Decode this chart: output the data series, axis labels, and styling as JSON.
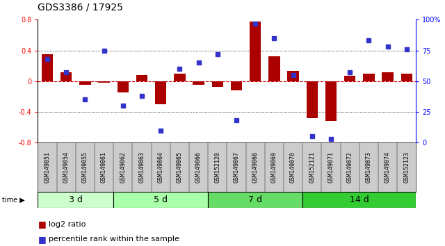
{
  "title": "GDS3386 / 17925",
  "samples": [
    "GSM149851",
    "GSM149854",
    "GSM149855",
    "GSM149861",
    "GSM149862",
    "GSM149863",
    "GSM149864",
    "GSM149865",
    "GSM149866",
    "GSM152120",
    "GSM149867",
    "GSM149868",
    "GSM149869",
    "GSM149870",
    "GSM152121",
    "GSM149871",
    "GSM149872",
    "GSM149873",
    "GSM149874",
    "GSM152123"
  ],
  "log2_ratio": [
    0.35,
    0.12,
    -0.05,
    -0.02,
    -0.15,
    0.08,
    -0.3,
    0.1,
    -0.05,
    -0.07,
    -0.12,
    0.78,
    0.32,
    0.13,
    -0.48,
    -0.52,
    0.07,
    0.1,
    0.12,
    0.1
  ],
  "percentile": [
    68,
    57,
    35,
    75,
    30,
    38,
    10,
    60,
    65,
    72,
    18,
    97,
    85,
    55,
    5,
    3,
    57,
    83,
    78,
    76
  ],
  "groups": [
    {
      "label": "3 d",
      "start": 0,
      "end": 4,
      "color": "#ccffcc"
    },
    {
      "label": "5 d",
      "start": 4,
      "end": 9,
      "color": "#aaffaa"
    },
    {
      "label": "7 d",
      "start": 9,
      "end": 14,
      "color": "#66dd66"
    },
    {
      "label": "14 d",
      "start": 14,
      "end": 20,
      "color": "#33cc33"
    }
  ],
  "ylim_left": [
    -0.8,
    0.8
  ],
  "ylim_right": [
    0,
    100
  ],
  "yticks_left": [
    -0.8,
    -0.4,
    0.0,
    0.4,
    0.8
  ],
  "yticks_right": [
    0,
    25,
    50,
    75,
    100
  ],
  "bar_color": "#aa0000",
  "dot_color": "#3333cc",
  "zero_line_color": "#cc0000",
  "background_color": "#ffffff",
  "label_bg_color": "#cccccc",
  "title_fontsize": 10,
  "tick_fontsize": 7,
  "label_fontsize": 6,
  "group_fontsize": 9
}
